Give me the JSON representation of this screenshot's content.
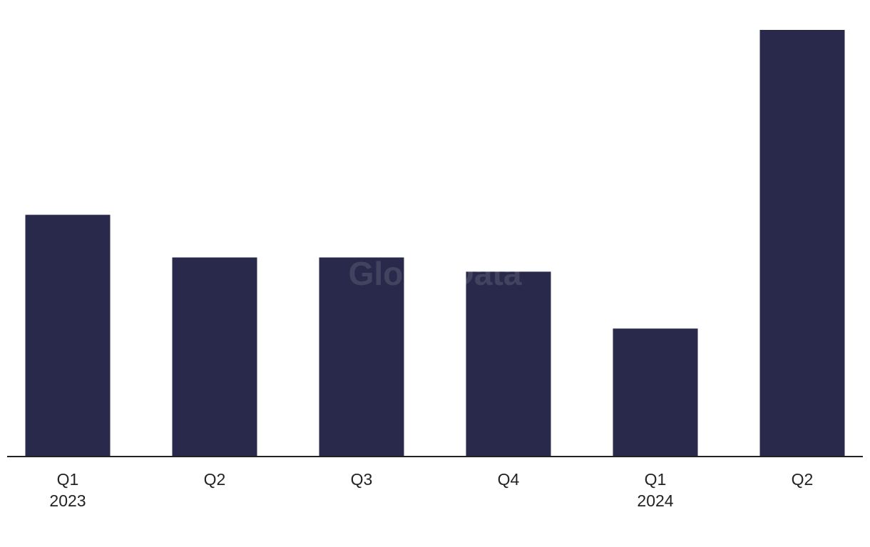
{
  "chart_data": {
    "type": "bar",
    "watermark": "GlobalData",
    "categories": [
      "Q1\n2023",
      "Q2",
      "Q3",
      "Q4",
      "Q1\n2024",
      "Q2"
    ],
    "values": [
      17,
      14,
      14,
      13,
      9,
      30
    ],
    "color": "#29294b",
    "ylim": [
      0,
      30
    ]
  }
}
